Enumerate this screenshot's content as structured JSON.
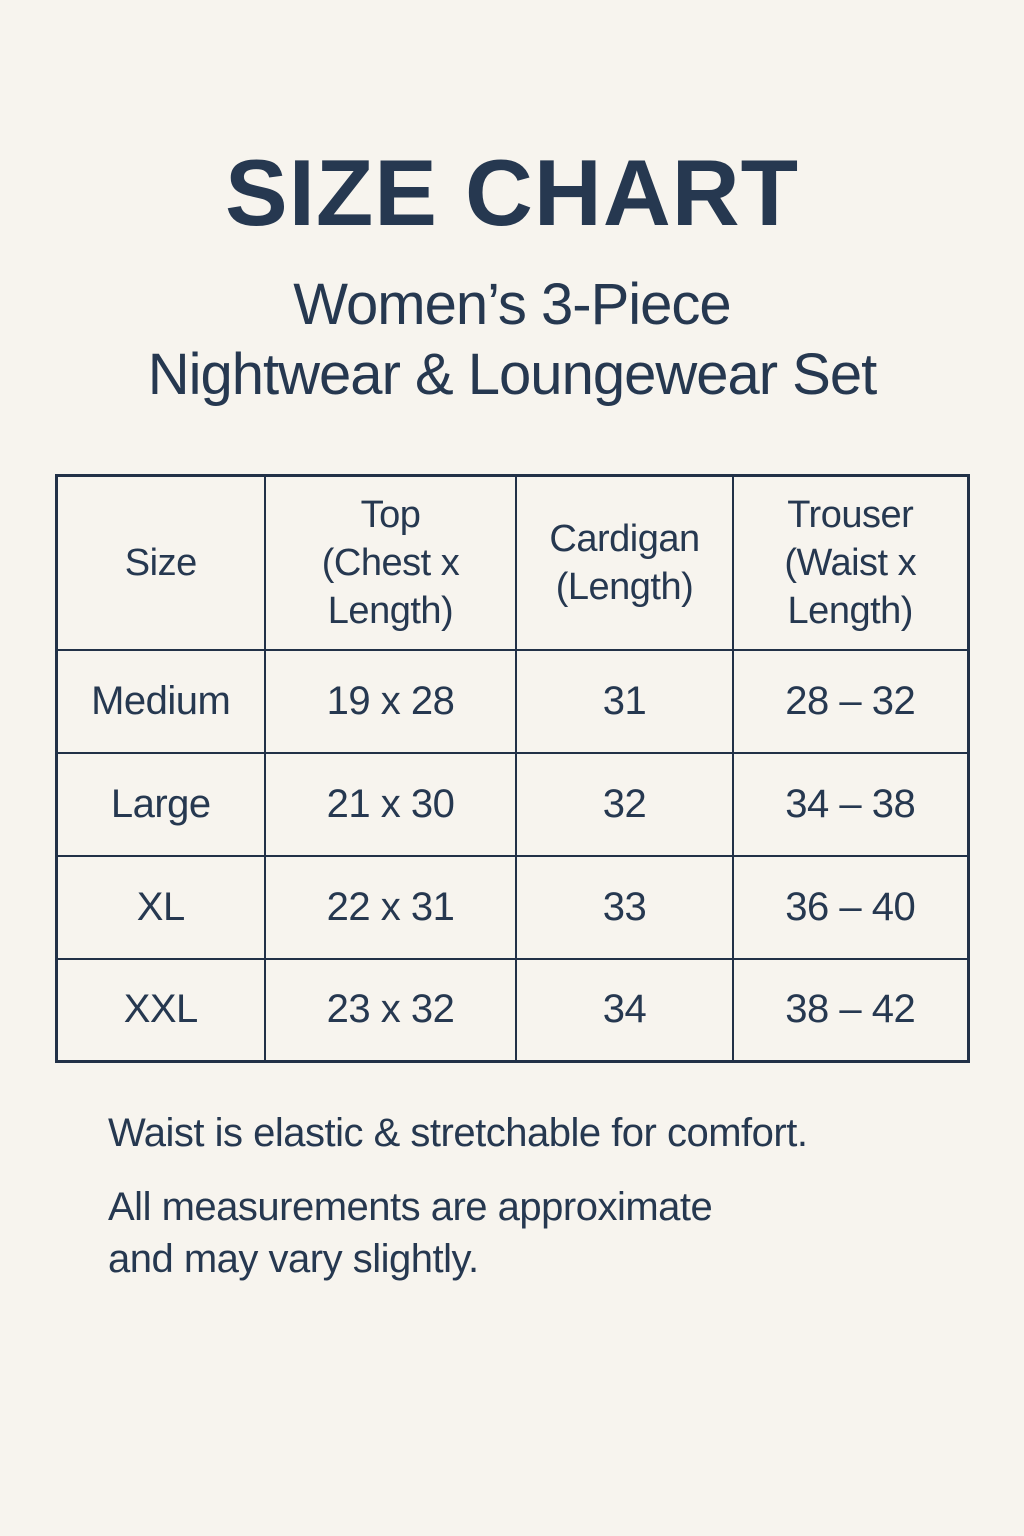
{
  "header": {
    "title": "SIZE CHART",
    "subtitle": "Women’s 3-Piece\nNightwear & Loungewear Set"
  },
  "size_table": {
    "columns": [
      {
        "label": "Size"
      },
      {
        "label": "Top\n(Chest x\nLength)"
      },
      {
        "label": "Cardigan\n(Length)"
      },
      {
        "label": "Trouser\n(Waist x\nLength)"
      }
    ],
    "rows": [
      {
        "size": "Medium",
        "top": "19 x 28",
        "cardigan": "31",
        "trouser": "28 – 32"
      },
      {
        "size": "Large",
        "top": "21 x 30",
        "cardigan": "32",
        "trouser": "34 – 38"
      },
      {
        "size": "XL",
        "top": "22 x 31",
        "cardigan": "33",
        "trouser": "36 – 40"
      },
      {
        "size": "XXL",
        "top": "23 x 32",
        "cardigan": "34",
        "trouser": "38 – 42"
      }
    ]
  },
  "notes": {
    "note1": "Waist is elastic & stretchable for comfort.",
    "note2": "All measurements are approximate\nand may vary slightly."
  },
  "colors": {
    "background": "#f7f4ee",
    "text": "#263850",
    "table_border": "#223147"
  }
}
